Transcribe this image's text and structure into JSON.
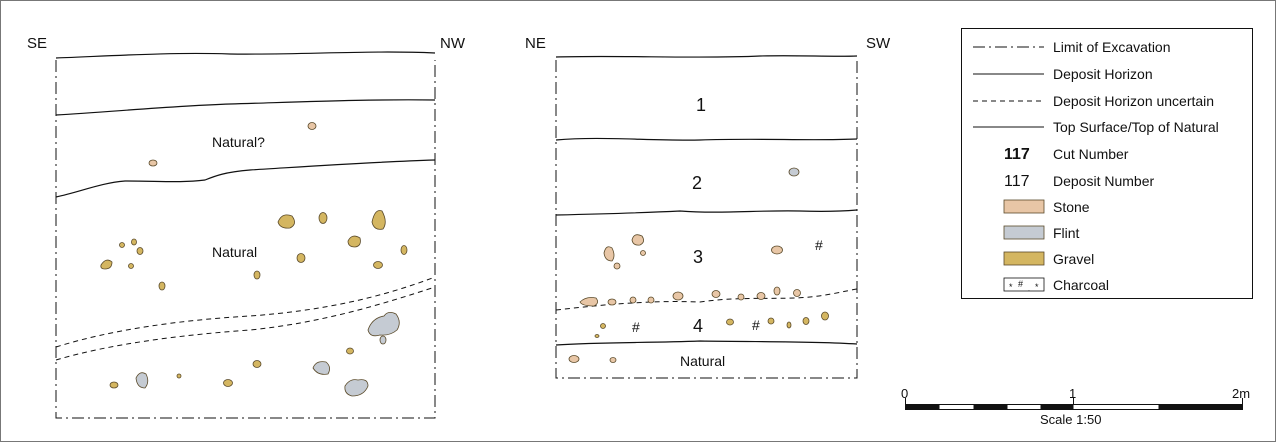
{
  "section_left": {
    "orientation_left": "SE",
    "orientation_right": "NW",
    "labels": [
      "Natural?",
      "Natural"
    ]
  },
  "section_right": {
    "orientation_left": "NE",
    "orientation_right": "SW",
    "deposit_numbers": [
      "1",
      "2",
      "3",
      "4"
    ],
    "natural_label": "Natural"
  },
  "legend": {
    "items": [
      {
        "symbol": "dash-dot-line",
        "label": "Limit of Excavation"
      },
      {
        "symbol": "solid-line",
        "label": "Deposit Horizon"
      },
      {
        "symbol": "dashed-line",
        "label": "Deposit Horizon uncertain"
      },
      {
        "symbol": "solid-line",
        "label": "Top Surface/Top of Natural"
      },
      {
        "symbol": "bold-number",
        "sample": "117",
        "label": "Cut Number"
      },
      {
        "symbol": "plain-number",
        "sample": "117",
        "label": "Deposit Number"
      },
      {
        "symbol": "swatch",
        "color": "#e8c6a6",
        "label": "Stone"
      },
      {
        "symbol": "swatch",
        "color": "#c5cbd3",
        "label": "Flint"
      },
      {
        "symbol": "swatch",
        "color": "#d4b661",
        "label": "Gravel"
      },
      {
        "symbol": "charcoal",
        "label": "Charcoal"
      }
    ]
  },
  "scale_bar": {
    "tick_labels": [
      "0",
      "1",
      "2m"
    ],
    "caption": "Scale 1:50"
  },
  "colors": {
    "stone": "#e8c6a6",
    "flint": "#c5cbd3",
    "gravel": "#d4b661",
    "outline": "#5a4a2a"
  }
}
